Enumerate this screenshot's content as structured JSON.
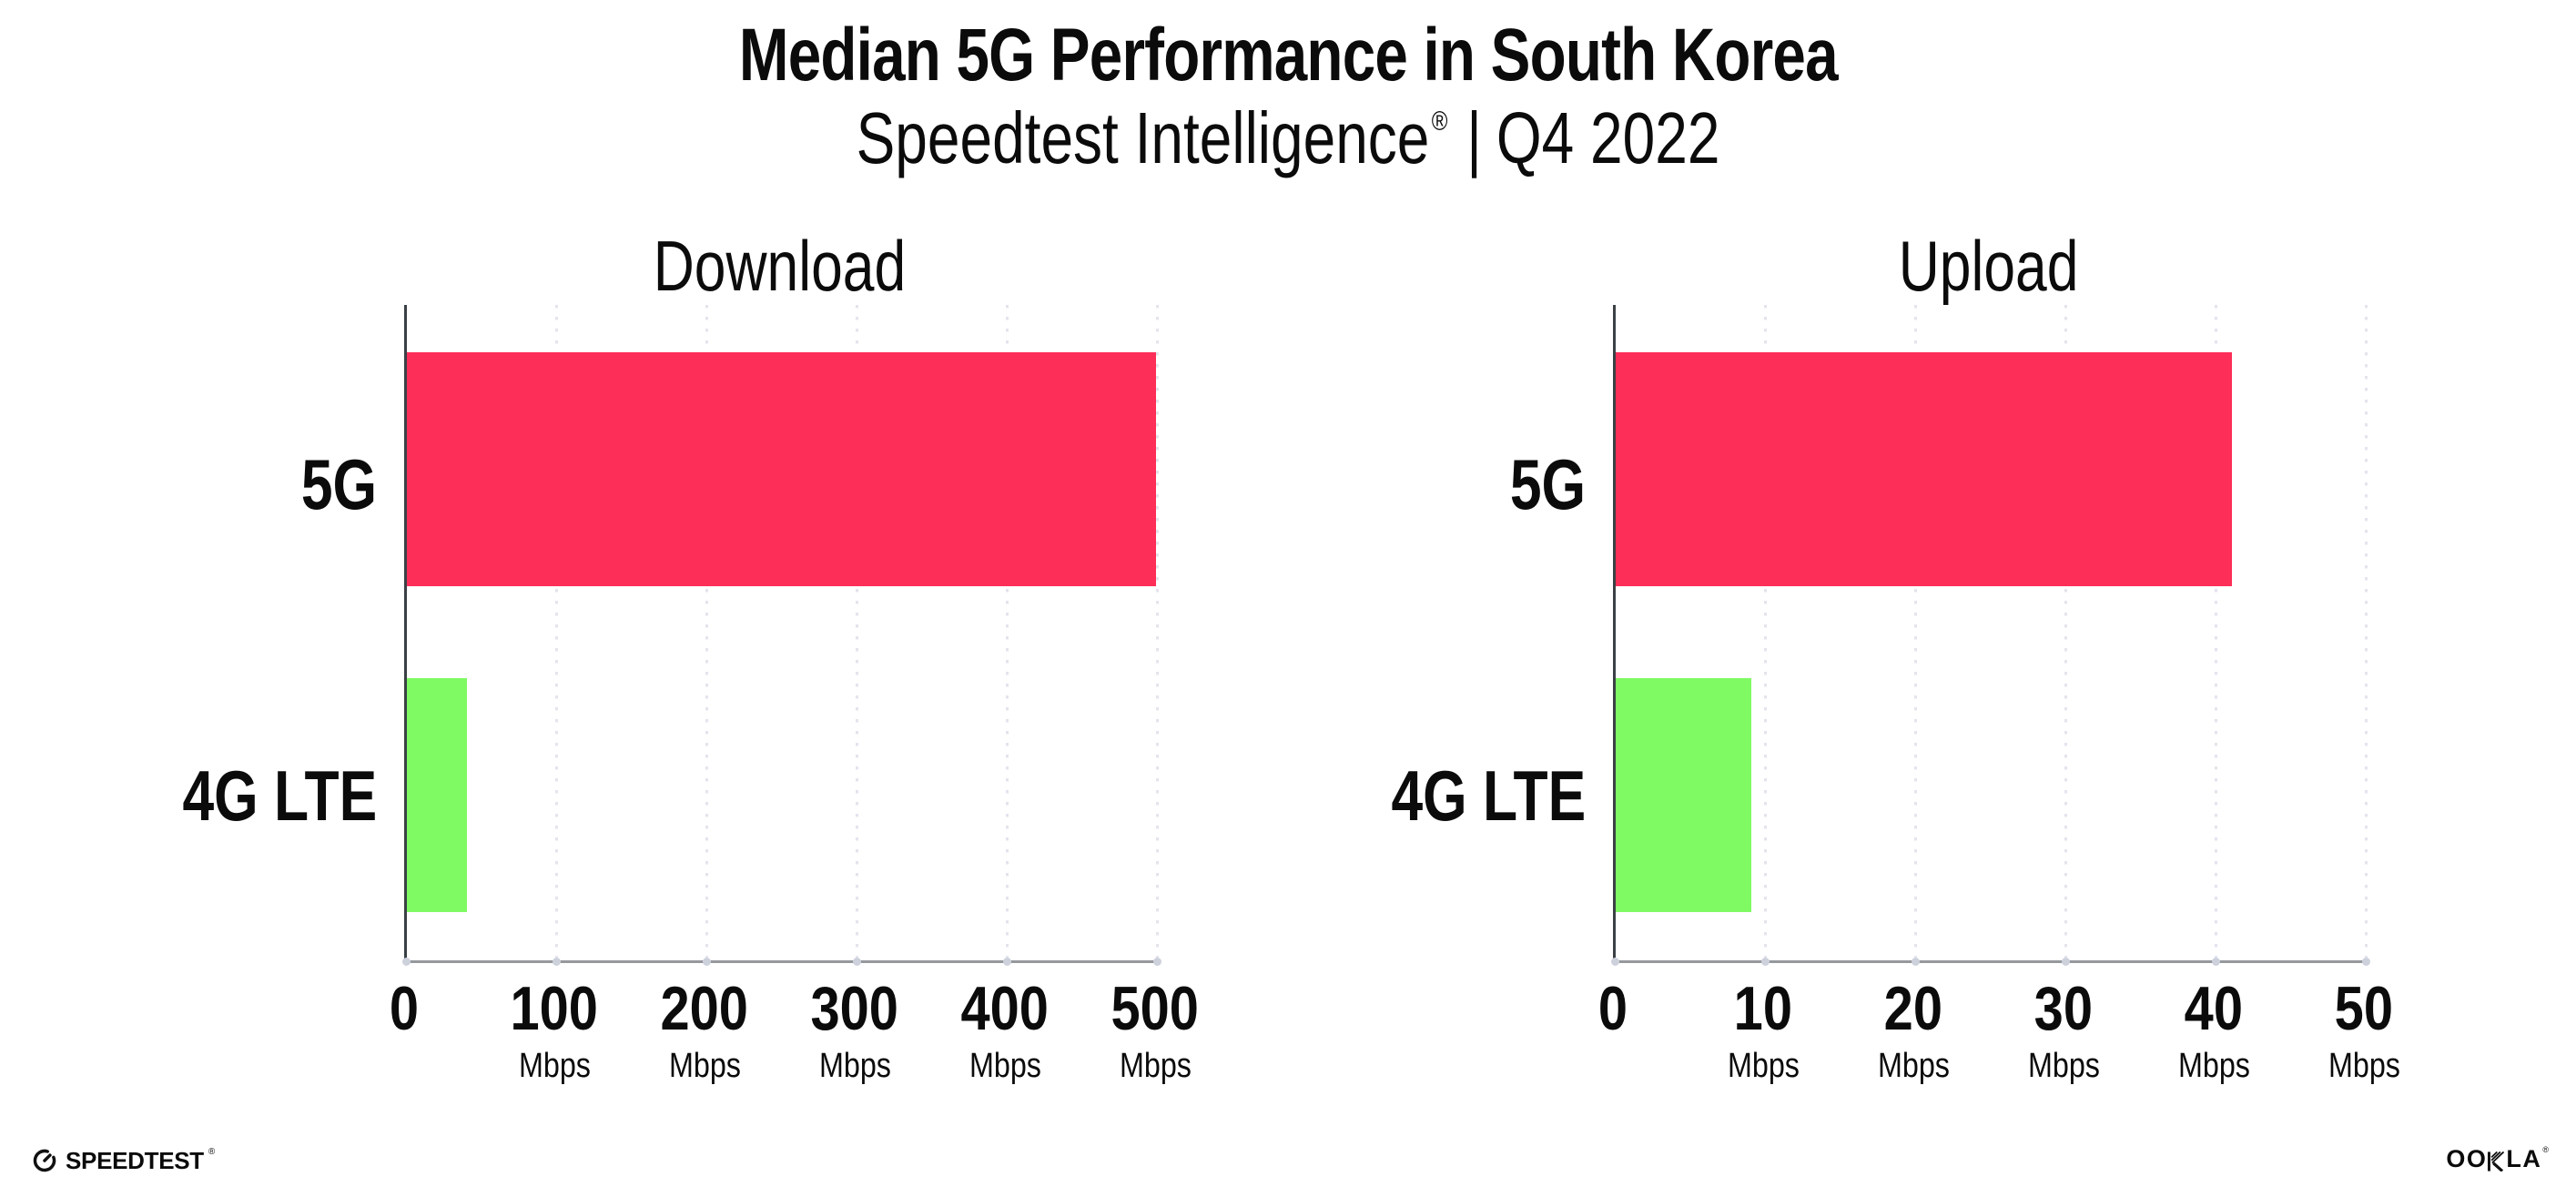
{
  "header": {
    "title": "Median 5G Performance in South Korea",
    "subtitle": {
      "brand": "Speedtest Intelligence",
      "registered_mark": "®",
      "divider": "|",
      "period": "Q4 2022"
    }
  },
  "chart_data": [
    {
      "type": "bar",
      "orientation": "horizontal",
      "title": "Download",
      "categories": [
        "5G",
        "4G LTE"
      ],
      "values": [
        499,
        40
      ],
      "unit": "Mbps",
      "xlim": [
        0,
        500
      ],
      "xticks": [
        0,
        100,
        200,
        300,
        400,
        500
      ],
      "bar_colors": [
        "#FD2E58",
        "#7FFA63"
      ],
      "grid": "dotted-vertical-gridlines",
      "legend": "none"
    },
    {
      "type": "bar",
      "orientation": "horizontal",
      "title": "Upload",
      "categories": [
        "5G",
        "4G LTE"
      ],
      "values": [
        41,
        9
      ],
      "unit": "Mbps",
      "xlim": [
        0,
        50
      ],
      "xticks": [
        0,
        10,
        20,
        30,
        40,
        50
      ],
      "bar_colors": [
        "#FD2E58",
        "#7FFA63"
      ],
      "grid": "dotted-vertical-gridlines",
      "legend": "none"
    }
  ],
  "footer": {
    "speedtest": "SPEEDTEST",
    "speedtest_mark": "®",
    "ookla": "OOKLA",
    "ookla_mark": "®"
  },
  "colors": {
    "bar_5g": "#FD2E58",
    "bar_4g_lte": "#7FFA63",
    "y_axis": "#3A4045",
    "x_axis": "#95989D",
    "gridline": "#E4E4EE",
    "tick_dot": "#CDD1DC",
    "text": "#0B0B0B"
  }
}
